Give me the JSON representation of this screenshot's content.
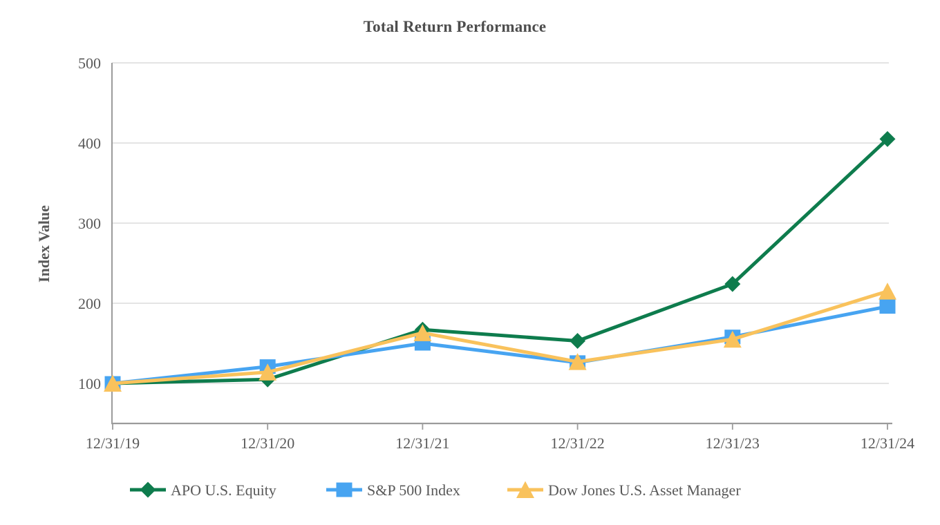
{
  "chart_data": {
    "type": "line",
    "title": "Total Return Performance",
    "ylabel": "Index Value",
    "xlabel": "",
    "categories": [
      "12/31/19",
      "12/31/20",
      "12/31/21",
      "12/31/22",
      "12/31/23",
      "12/31/24"
    ],
    "series": [
      {
        "name": "APO U.S. Equity",
        "marker": "diamond",
        "color": "#0e7c4d",
        "values": [
          100,
          105,
          167,
          153,
          224,
          405
        ]
      },
      {
        "name": "S&P 500 Index",
        "marker": "square",
        "color": "#47a4f1",
        "values": [
          100,
          121,
          150,
          126,
          158,
          196
        ]
      },
      {
        "name": "Dow Jones U.S. Asset Manager",
        "marker": "triangle",
        "color": "#f9c25c",
        "values": [
          100,
          114,
          163,
          127,
          155,
          215
        ]
      }
    ],
    "ylim": [
      50,
      500
    ],
    "yticks": [
      100,
      200,
      300,
      400,
      500
    ],
    "grid": true,
    "legend_position": "bottom",
    "colors": {
      "grid": "#dcdcdc",
      "axis": "#9b9b9b",
      "tick_text": "#595959",
      "title_text": "#4d4d4d",
      "background": "#ffffff"
    }
  }
}
